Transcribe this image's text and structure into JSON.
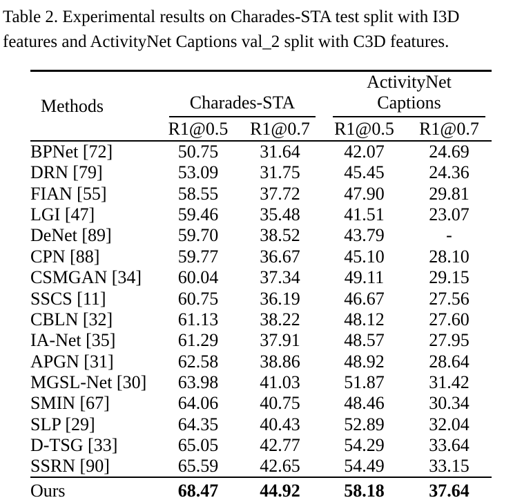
{
  "caption": {
    "line1": "Table 2. Experimental results on Charades-STA test split with I3D",
    "line2": "features and ActivityNet Captions val_2 split with C3D features."
  },
  "table": {
    "methods_header": "Methods",
    "groups": [
      {
        "label": "Charades-STA",
        "subcols": [
          "R1@0.5",
          "R1@0.7"
        ]
      },
      {
        "label": "ActivityNet Captions",
        "subcols": [
          "R1@0.5",
          "R1@0.7"
        ]
      }
    ],
    "rows": [
      {
        "method": "BPNet [72]",
        "values": [
          "50.75",
          "31.64",
          "42.07",
          "24.69"
        ]
      },
      {
        "method": "DRN [79]",
        "values": [
          "53.09",
          "31.75",
          "45.45",
          "24.36"
        ]
      },
      {
        "method": "FIAN [55]",
        "values": [
          "58.55",
          "37.72",
          "47.90",
          "29.81"
        ]
      },
      {
        "method": "LGI [47]",
        "values": [
          "59.46",
          "35.48",
          "41.51",
          "23.07"
        ]
      },
      {
        "method": "DeNet [89]",
        "values": [
          "59.70",
          "38.52",
          "43.79",
          "-"
        ]
      },
      {
        "method": "CPN [88]",
        "values": [
          "59.77",
          "36.67",
          "45.10",
          "28.10"
        ]
      },
      {
        "method": "CSMGAN [34]",
        "values": [
          "60.04",
          "37.34",
          "49.11",
          "29.15"
        ]
      },
      {
        "method": "SSCS [11]",
        "values": [
          "60.75",
          "36.19",
          "46.67",
          "27.56"
        ]
      },
      {
        "method": "CBLN [32]",
        "values": [
          "61.13",
          "38.22",
          "48.12",
          "27.60"
        ]
      },
      {
        "method": "IA-Net [35]",
        "values": [
          "61.29",
          "37.91",
          "48.57",
          "27.95"
        ]
      },
      {
        "method": "APGN [31]",
        "values": [
          "62.58",
          "38.86",
          "48.92",
          "28.64"
        ]
      },
      {
        "method": "MGSL-Net [30]",
        "values": [
          "63.98",
          "41.03",
          "51.87",
          "31.42"
        ]
      },
      {
        "method": "SMIN [67]",
        "values": [
          "64.06",
          "40.75",
          "48.46",
          "30.34"
        ]
      },
      {
        "method": "SLP [29]",
        "values": [
          "64.35",
          "40.43",
          "52.89",
          "32.04"
        ]
      },
      {
        "method": "D-TSG [33]",
        "values": [
          "65.05",
          "42.77",
          "54.29",
          "33.64"
        ]
      },
      {
        "method": "SSRN [90]",
        "values": [
          "65.59",
          "42.65",
          "54.49",
          "33.15"
        ]
      }
    ],
    "ours": {
      "method": "Ours",
      "values": [
        "68.47",
        "44.92",
        "58.18",
        "37.64"
      ]
    }
  },
  "colors": {
    "text": "#000000",
    "background": "#ffffff",
    "rule": "#000000"
  }
}
